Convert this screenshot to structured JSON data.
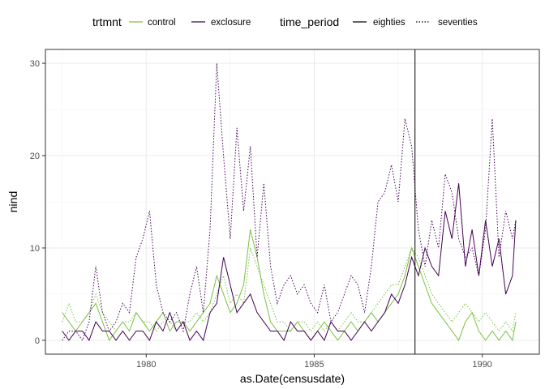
{
  "chart_data": {
    "type": "line",
    "title": "",
    "xlabel": "as.Date(censusdate)",
    "ylabel": "nind",
    "xlim": [
      1977.0,
      1991.7
    ],
    "ylim": [
      -1.5,
      31.5
    ],
    "x_ticks": [
      1980,
      1985,
      1990
    ],
    "y_ticks": [
      0,
      10,
      20,
      30
    ],
    "grid": true,
    "legend_position": "top",
    "vline": 1988.0,
    "legend": {
      "trtmnt": {
        "title": "trtmnt",
        "entries": [
          {
            "label": "control",
            "color": "#7ac143"
          },
          {
            "label": "exclosure",
            "color": "#440154"
          }
        ]
      },
      "time_period": {
        "title": "time_period",
        "entries": [
          {
            "label": "eighties",
            "dash": "solid"
          },
          {
            "label": "seventies",
            "dash": "dotted"
          }
        ]
      }
    },
    "series": [
      {
        "trtmnt": "control",
        "time_period": "eighties",
        "color": "#7ac143",
        "dash": "solid",
        "points": [
          [
            1977.5,
            3
          ],
          [
            1977.7,
            2
          ],
          [
            1977.9,
            1
          ],
          [
            1978.1,
            2
          ],
          [
            1978.3,
            3
          ],
          [
            1978.5,
            4
          ],
          [
            1978.7,
            2
          ],
          [
            1978.9,
            0
          ],
          [
            1979.1,
            1
          ],
          [
            1979.3,
            2
          ],
          [
            1979.5,
            1
          ],
          [
            1979.7,
            3
          ],
          [
            1979.9,
            2
          ],
          [
            1980.1,
            1
          ],
          [
            1980.3,
            2
          ],
          [
            1980.5,
            3
          ],
          [
            1980.7,
            1
          ],
          [
            1980.9,
            2
          ],
          [
            1981.1,
            2
          ],
          [
            1981.3,
            1
          ],
          [
            1981.5,
            2
          ],
          [
            1981.7,
            3
          ],
          [
            1981.9,
            4
          ],
          [
            1982.1,
            7
          ],
          [
            1982.3,
            5
          ],
          [
            1982.5,
            3
          ],
          [
            1982.7,
            4
          ],
          [
            1982.9,
            6
          ],
          [
            1983.1,
            12
          ],
          [
            1983.3,
            9
          ],
          [
            1983.5,
            5
          ],
          [
            1983.7,
            2
          ],
          [
            1983.9,
            1
          ],
          [
            1984.1,
            1
          ],
          [
            1984.3,
            1
          ],
          [
            1984.5,
            2
          ],
          [
            1984.7,
            1
          ],
          [
            1984.9,
            0
          ],
          [
            1985.1,
            1
          ],
          [
            1985.3,
            2
          ],
          [
            1985.5,
            1
          ],
          [
            1985.7,
            0
          ],
          [
            1985.9,
            1
          ],
          [
            1986.1,
            2
          ],
          [
            1986.3,
            1
          ],
          [
            1986.5,
            2
          ],
          [
            1986.7,
            3
          ],
          [
            1986.9,
            2
          ],
          [
            1987.1,
            3
          ],
          [
            1987.3,
            4
          ],
          [
            1987.5,
            5
          ],
          [
            1987.7,
            7
          ],
          [
            1987.9,
            10
          ],
          [
            1988.1,
            8
          ],
          [
            1988.3,
            6
          ],
          [
            1988.5,
            4
          ],
          [
            1988.7,
            3
          ],
          [
            1988.9,
            2
          ],
          [
            1989.1,
            1
          ],
          [
            1989.3,
            0
          ],
          [
            1989.5,
            2
          ],
          [
            1989.7,
            3
          ],
          [
            1989.9,
            1
          ],
          [
            1990.1,
            0
          ],
          [
            1990.3,
            1
          ],
          [
            1990.5,
            0
          ],
          [
            1990.7,
            1
          ],
          [
            1990.9,
            0
          ],
          [
            1991.0,
            2
          ]
        ]
      },
      {
        "trtmnt": "control",
        "time_period": "seventies",
        "color": "#7ac143",
        "dash": "dotted",
        "points": [
          [
            1977.5,
            2
          ],
          [
            1977.7,
            4
          ],
          [
            1977.9,
            2
          ],
          [
            1978.1,
            2
          ],
          [
            1978.3,
            3
          ],
          [
            1978.5,
            5
          ],
          [
            1978.7,
            3
          ],
          [
            1978.9,
            2
          ],
          [
            1979.1,
            1
          ],
          [
            1979.3,
            2
          ],
          [
            1979.5,
            2
          ],
          [
            1979.7,
            3
          ],
          [
            1979.9,
            2
          ],
          [
            1980.1,
            2
          ],
          [
            1980.3,
            1
          ],
          [
            1980.5,
            2
          ],
          [
            1980.7,
            2
          ],
          [
            1980.9,
            1
          ],
          [
            1981.1,
            2
          ],
          [
            1981.3,
            2
          ],
          [
            1981.5,
            3
          ],
          [
            1981.7,
            2
          ],
          [
            1981.9,
            3
          ],
          [
            1982.1,
            5
          ],
          [
            1982.3,
            7
          ],
          [
            1982.5,
            4
          ],
          [
            1982.7,
            5
          ],
          [
            1982.9,
            4
          ],
          [
            1983.1,
            10
          ],
          [
            1983.3,
            8
          ],
          [
            1983.5,
            6
          ],
          [
            1983.7,
            4
          ],
          [
            1983.9,
            2
          ],
          [
            1984.1,
            2
          ],
          [
            1984.3,
            1
          ],
          [
            1984.5,
            2
          ],
          [
            1984.7,
            2
          ],
          [
            1984.9,
            1
          ],
          [
            1985.1,
            2
          ],
          [
            1985.3,
            1
          ],
          [
            1985.5,
            2
          ],
          [
            1985.7,
            1
          ],
          [
            1985.9,
            2
          ],
          [
            1986.1,
            3
          ],
          [
            1986.3,
            2
          ],
          [
            1986.5,
            2
          ],
          [
            1986.7,
            3
          ],
          [
            1986.9,
            4
          ],
          [
            1987.1,
            5
          ],
          [
            1987.3,
            6
          ],
          [
            1987.5,
            6
          ],
          [
            1987.7,
            8
          ],
          [
            1987.9,
            10
          ],
          [
            1988.1,
            9
          ],
          [
            1988.3,
            7
          ],
          [
            1988.5,
            5
          ],
          [
            1988.7,
            4
          ],
          [
            1988.9,
            3
          ],
          [
            1989.1,
            2
          ],
          [
            1989.3,
            3
          ],
          [
            1989.5,
            4
          ],
          [
            1989.7,
            3
          ],
          [
            1989.9,
            2
          ],
          [
            1990.1,
            3
          ],
          [
            1990.3,
            2
          ],
          [
            1990.5,
            1
          ],
          [
            1990.7,
            2
          ],
          [
            1990.9,
            1
          ],
          [
            1991.0,
            3
          ]
        ]
      },
      {
        "trtmnt": "exclosure",
        "time_period": "eighties",
        "color": "#440154",
        "dash": "solid",
        "points": [
          [
            1977.5,
            1
          ],
          [
            1977.7,
            0
          ],
          [
            1977.9,
            1
          ],
          [
            1978.1,
            1
          ],
          [
            1978.3,
            0
          ],
          [
            1978.5,
            2
          ],
          [
            1978.7,
            1
          ],
          [
            1978.9,
            1
          ],
          [
            1979.1,
            0
          ],
          [
            1979.3,
            1
          ],
          [
            1979.5,
            0
          ],
          [
            1979.7,
            1
          ],
          [
            1979.9,
            1
          ],
          [
            1980.1,
            0
          ],
          [
            1980.3,
            2
          ],
          [
            1980.5,
            1
          ],
          [
            1980.7,
            3
          ],
          [
            1980.9,
            1
          ],
          [
            1981.1,
            2
          ],
          [
            1981.3,
            0
          ],
          [
            1981.5,
            1
          ],
          [
            1981.7,
            0
          ],
          [
            1981.9,
            3
          ],
          [
            1982.1,
            4
          ],
          [
            1982.3,
            9
          ],
          [
            1982.5,
            6
          ],
          [
            1982.7,
            3
          ],
          [
            1982.9,
            4
          ],
          [
            1983.1,
            5
          ],
          [
            1983.3,
            3
          ],
          [
            1983.5,
            2
          ],
          [
            1983.7,
            1
          ],
          [
            1983.9,
            1
          ],
          [
            1984.1,
            0
          ],
          [
            1984.3,
            2
          ],
          [
            1984.5,
            1
          ],
          [
            1984.7,
            1
          ],
          [
            1984.9,
            0
          ],
          [
            1985.1,
            1
          ],
          [
            1985.3,
            0
          ],
          [
            1985.5,
            2
          ],
          [
            1985.7,
            1
          ],
          [
            1985.9,
            1
          ],
          [
            1986.1,
            0
          ],
          [
            1986.3,
            1
          ],
          [
            1986.5,
            2
          ],
          [
            1986.7,
            1
          ],
          [
            1986.9,
            2
          ],
          [
            1987.1,
            3
          ],
          [
            1987.3,
            5
          ],
          [
            1987.5,
            4
          ],
          [
            1987.7,
            6
          ],
          [
            1987.9,
            9
          ],
          [
            1988.1,
            7
          ],
          [
            1988.3,
            10
          ],
          [
            1988.5,
            8
          ],
          [
            1988.7,
            7
          ],
          [
            1988.9,
            14
          ],
          [
            1989.1,
            11
          ],
          [
            1989.3,
            17
          ],
          [
            1989.5,
            8
          ],
          [
            1989.7,
            12
          ],
          [
            1989.9,
            7
          ],
          [
            1990.1,
            13
          ],
          [
            1990.3,
            8
          ],
          [
            1990.5,
            11
          ],
          [
            1990.7,
            5
          ],
          [
            1990.9,
            7
          ],
          [
            1991.0,
            13
          ]
        ]
      },
      {
        "trtmnt": "exclosure",
        "time_period": "seventies",
        "color": "#440154",
        "dash": "dotted",
        "points": [
          [
            1977.5,
            0
          ],
          [
            1977.7,
            1
          ],
          [
            1977.9,
            1
          ],
          [
            1978.1,
            0
          ],
          [
            1978.3,
            2
          ],
          [
            1978.5,
            8
          ],
          [
            1978.7,
            3
          ],
          [
            1978.9,
            1
          ],
          [
            1979.1,
            2
          ],
          [
            1979.3,
            4
          ],
          [
            1979.5,
            3
          ],
          [
            1979.7,
            9
          ],
          [
            1979.9,
            11
          ],
          [
            1980.1,
            14
          ],
          [
            1980.3,
            6
          ],
          [
            1980.5,
            3
          ],
          [
            1980.7,
            2
          ],
          [
            1980.9,
            3
          ],
          [
            1981.1,
            1
          ],
          [
            1981.3,
            5
          ],
          [
            1981.5,
            8
          ],
          [
            1981.7,
            3
          ],
          [
            1981.9,
            12
          ],
          [
            1982.1,
            30
          ],
          [
            1982.3,
            20
          ],
          [
            1982.5,
            11
          ],
          [
            1982.7,
            23
          ],
          [
            1982.9,
            14
          ],
          [
            1983.1,
            21
          ],
          [
            1983.3,
            9
          ],
          [
            1983.5,
            17
          ],
          [
            1983.7,
            8
          ],
          [
            1983.9,
            4
          ],
          [
            1984.1,
            6
          ],
          [
            1984.3,
            7
          ],
          [
            1984.5,
            5
          ],
          [
            1984.7,
            6
          ],
          [
            1984.9,
            4
          ],
          [
            1985.1,
            3
          ],
          [
            1985.3,
            6
          ],
          [
            1985.5,
            2
          ],
          [
            1985.7,
            3
          ],
          [
            1985.9,
            5
          ],
          [
            1986.1,
            7
          ],
          [
            1986.3,
            6
          ],
          [
            1986.5,
            3
          ],
          [
            1986.7,
            8
          ],
          [
            1986.9,
            15
          ],
          [
            1987.1,
            16
          ],
          [
            1987.3,
            19
          ],
          [
            1987.5,
            15
          ],
          [
            1987.7,
            24
          ],
          [
            1987.9,
            21
          ],
          [
            1988.1,
            12
          ],
          [
            1988.3,
            8
          ],
          [
            1988.5,
            13
          ],
          [
            1988.7,
            10
          ],
          [
            1988.9,
            18
          ],
          [
            1989.1,
            16
          ],
          [
            1989.3,
            11
          ],
          [
            1989.5,
            9
          ],
          [
            1989.7,
            10
          ],
          [
            1989.9,
            7
          ],
          [
            1990.1,
            12
          ],
          [
            1990.3,
            24
          ],
          [
            1990.5,
            9
          ],
          [
            1990.7,
            14
          ],
          [
            1990.9,
            11
          ],
          [
            1991.0,
            13
          ]
        ]
      }
    ]
  }
}
